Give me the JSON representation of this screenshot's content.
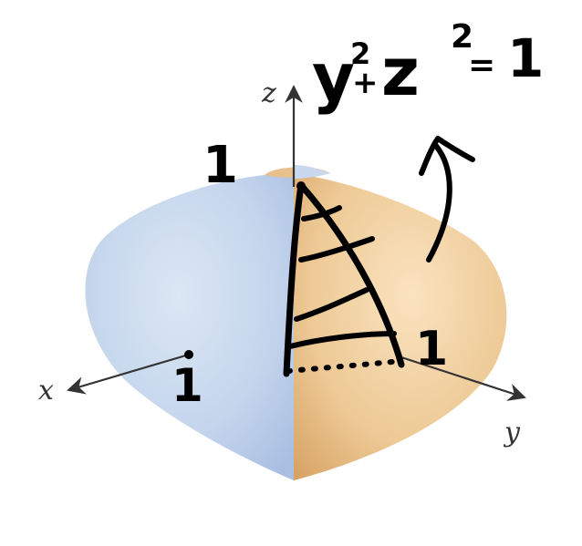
{
  "axes": {
    "x_label": "x",
    "y_label": "y",
    "z_label": "z"
  },
  "handwritten": {
    "equation": {
      "base1": "y",
      "exp1": "2",
      "plus": "+",
      "base2": "z",
      "exp2": "2",
      "equals": "=",
      "rhs": "1"
    },
    "tick_z": "1",
    "tick_y": "1",
    "tick_x": "1"
  },
  "colors": {
    "blue_half": "#b9cde9",
    "blue_highlight": "#dbe7f4",
    "orange_half": "#e8c08c",
    "orange_highlight": "#fbe3c0",
    "ink": "#000000",
    "axis": "#333333"
  }
}
